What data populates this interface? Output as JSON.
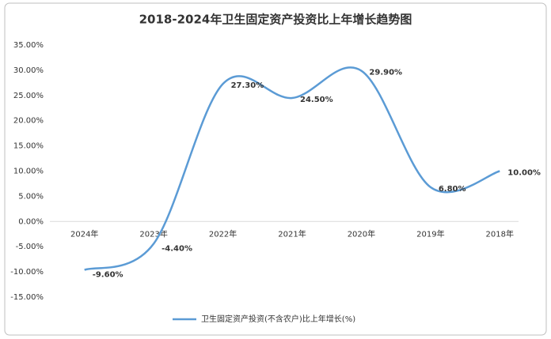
{
  "chart_data": {
    "type": "line",
    "title": "2018-2024年卫生固定资产投资比上年增长趋势图",
    "categories": [
      "2024年",
      "2023年",
      "2022年",
      "2021年",
      "2020年",
      "2019年",
      "2018年"
    ],
    "series": [
      {
        "name": "卫生固定资产投资(不含农户)比上年增长(%)",
        "color": "#5b9bd5",
        "values": [
          -9.6,
          -4.4,
          27.3,
          24.5,
          29.9,
          6.8,
          10.0
        ],
        "value_labels": [
          "-9.60%",
          "-4.40%",
          "27.30%",
          "24.50%",
          "29.90%",
          "6.80%",
          "10.00%"
        ]
      }
    ],
    "ylim": [
      -15,
      35
    ],
    "yticks": [
      {
        "value": -15,
        "label": "-15.00%"
      },
      {
        "value": -10,
        "label": "-10.00%"
      },
      {
        "value": -5,
        "label": "-5.00%"
      },
      {
        "value": 0,
        "label": "0.00%"
      },
      {
        "value": 5,
        "label": "5.00%"
      },
      {
        "value": 10,
        "label": "10.00%"
      },
      {
        "value": 15,
        "label": "15.00%"
      },
      {
        "value": 20,
        "label": "20.00%"
      },
      {
        "value": 25,
        "label": "25.00%"
      },
      {
        "value": 30,
        "label": "30.00%"
      },
      {
        "value": 35,
        "label": "35.00%"
      }
    ],
    "grid": false,
    "legend": "bottom"
  }
}
